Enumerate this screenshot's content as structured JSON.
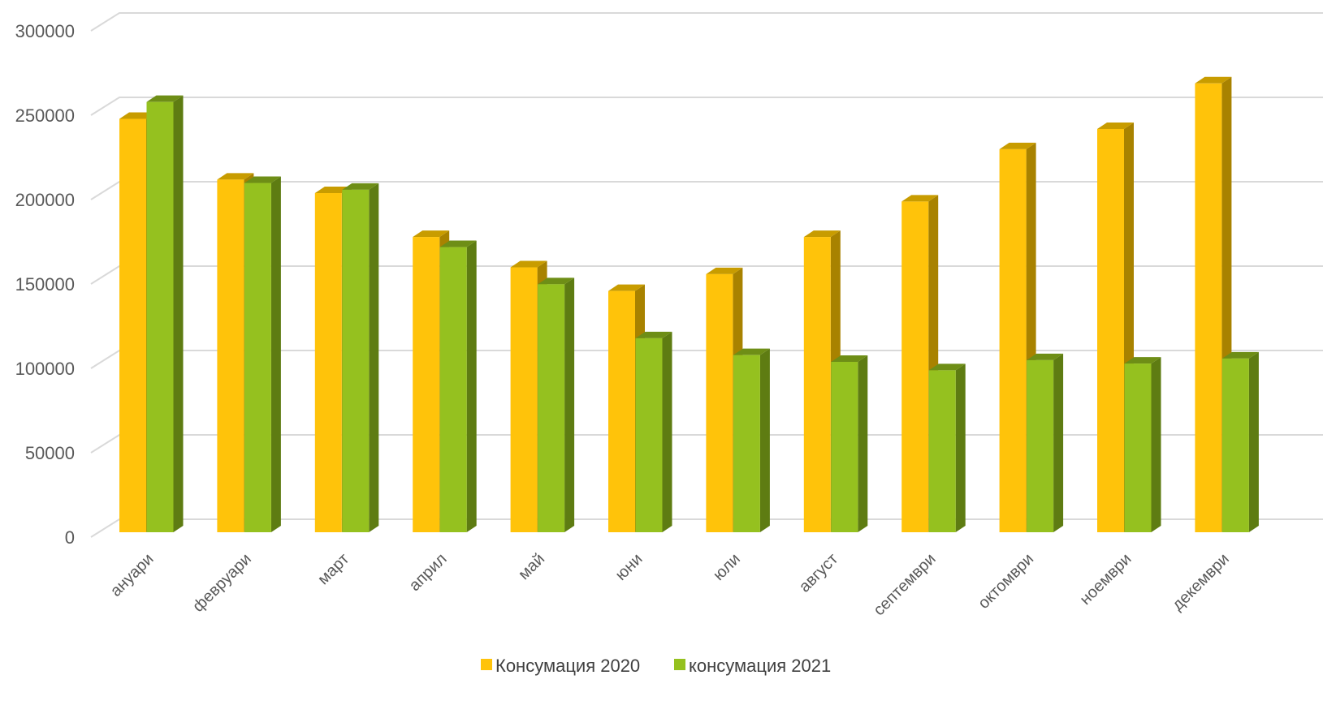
{
  "chart_data": {
    "type": "bar",
    "title": "",
    "xlabel": "",
    "ylabel": "",
    "ylim": [
      0,
      300000
    ],
    "yticks": [
      "0",
      "50000",
      "100000",
      "150000",
      "200000",
      "250000",
      "300000"
    ],
    "categories": [
      "ануари",
      "февруари",
      "март",
      "април",
      "май",
      "юни",
      "юли",
      "август",
      "септември",
      "октомври",
      "ноември",
      "декември"
    ],
    "series": [
      {
        "name": "Консумация 2020",
        "color": "#FFC30A",
        "side_color": "#A88200",
        "top_color": "#C89C00",
        "values": [
          244000,
          208000,
          200000,
          174000,
          156000,
          142000,
          152000,
          174000,
          195000,
          226000,
          238000,
          265000
        ]
      },
      {
        "name": "консумация 2021",
        "color": "#95C11F",
        "side_color": "#5E7C12",
        "top_color": "#6E8E16",
        "values": [
          254000,
          206000,
          202000,
          168000,
          146000,
          114000,
          104000,
          100000,
          95000,
          101000,
          99000,
          102000
        ]
      }
    ],
    "grid": true,
    "legend": "bottom"
  }
}
